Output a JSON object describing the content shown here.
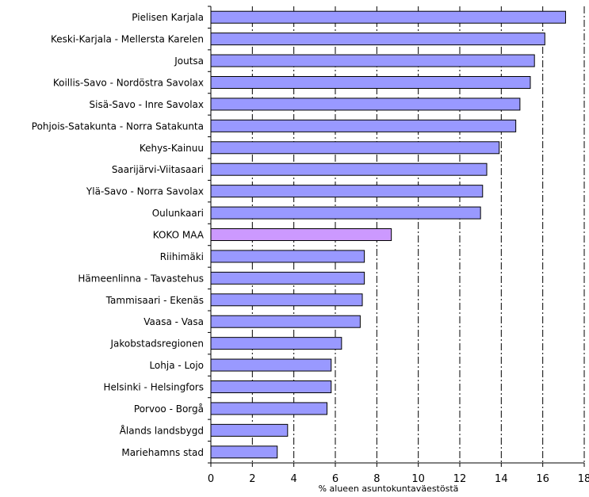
{
  "chart_data": {
    "type": "bar",
    "orientation": "horizontal",
    "xlabel": "% alueen asuntokuntaväestöstä",
    "xlim": [
      0,
      18
    ],
    "xticks": [
      0,
      2,
      4,
      6,
      8,
      10,
      12,
      14,
      16,
      18
    ],
    "grid": "vertical dash-dot",
    "colors": {
      "bar": "#9999ff",
      "highlight": "#cc99ff",
      "edge": "#000000"
    },
    "highlight_category": "KOKO MAA",
    "categories": [
      "Pielisen Karjala",
      "Keski-Karjala - Mellersta Karelen",
      "Joutsa",
      "Koillis-Savo - Nordöstra Savolax",
      "Sisä-Savo - Inre Savolax",
      "Pohjois-Satakunta - Norra Satakunta",
      "Kehys-Kainuu",
      "Saarijärvi-Viitasaari",
      "Ylä-Savo - Norra Savolax",
      "Oulunkaari",
      "KOKO MAA",
      "Riihimäki",
      "Hämeenlinna - Tavastehus",
      "Tammisaari - Ekenäs",
      "Vaasa - Vasa",
      "Jakobstadsregionen",
      "Lohja - Lojo",
      "Helsinki - Helsingfors",
      "Porvoo - Borgå",
      "Ålands landsbygd",
      "Mariehamns stad"
    ],
    "values": [
      17.1,
      16.1,
      15.6,
      15.4,
      14.9,
      14.7,
      13.9,
      13.3,
      13.1,
      13.0,
      8.7,
      7.4,
      7.4,
      7.3,
      7.2,
      6.3,
      5.8,
      5.8,
      5.6,
      3.7,
      3.2
    ]
  }
}
